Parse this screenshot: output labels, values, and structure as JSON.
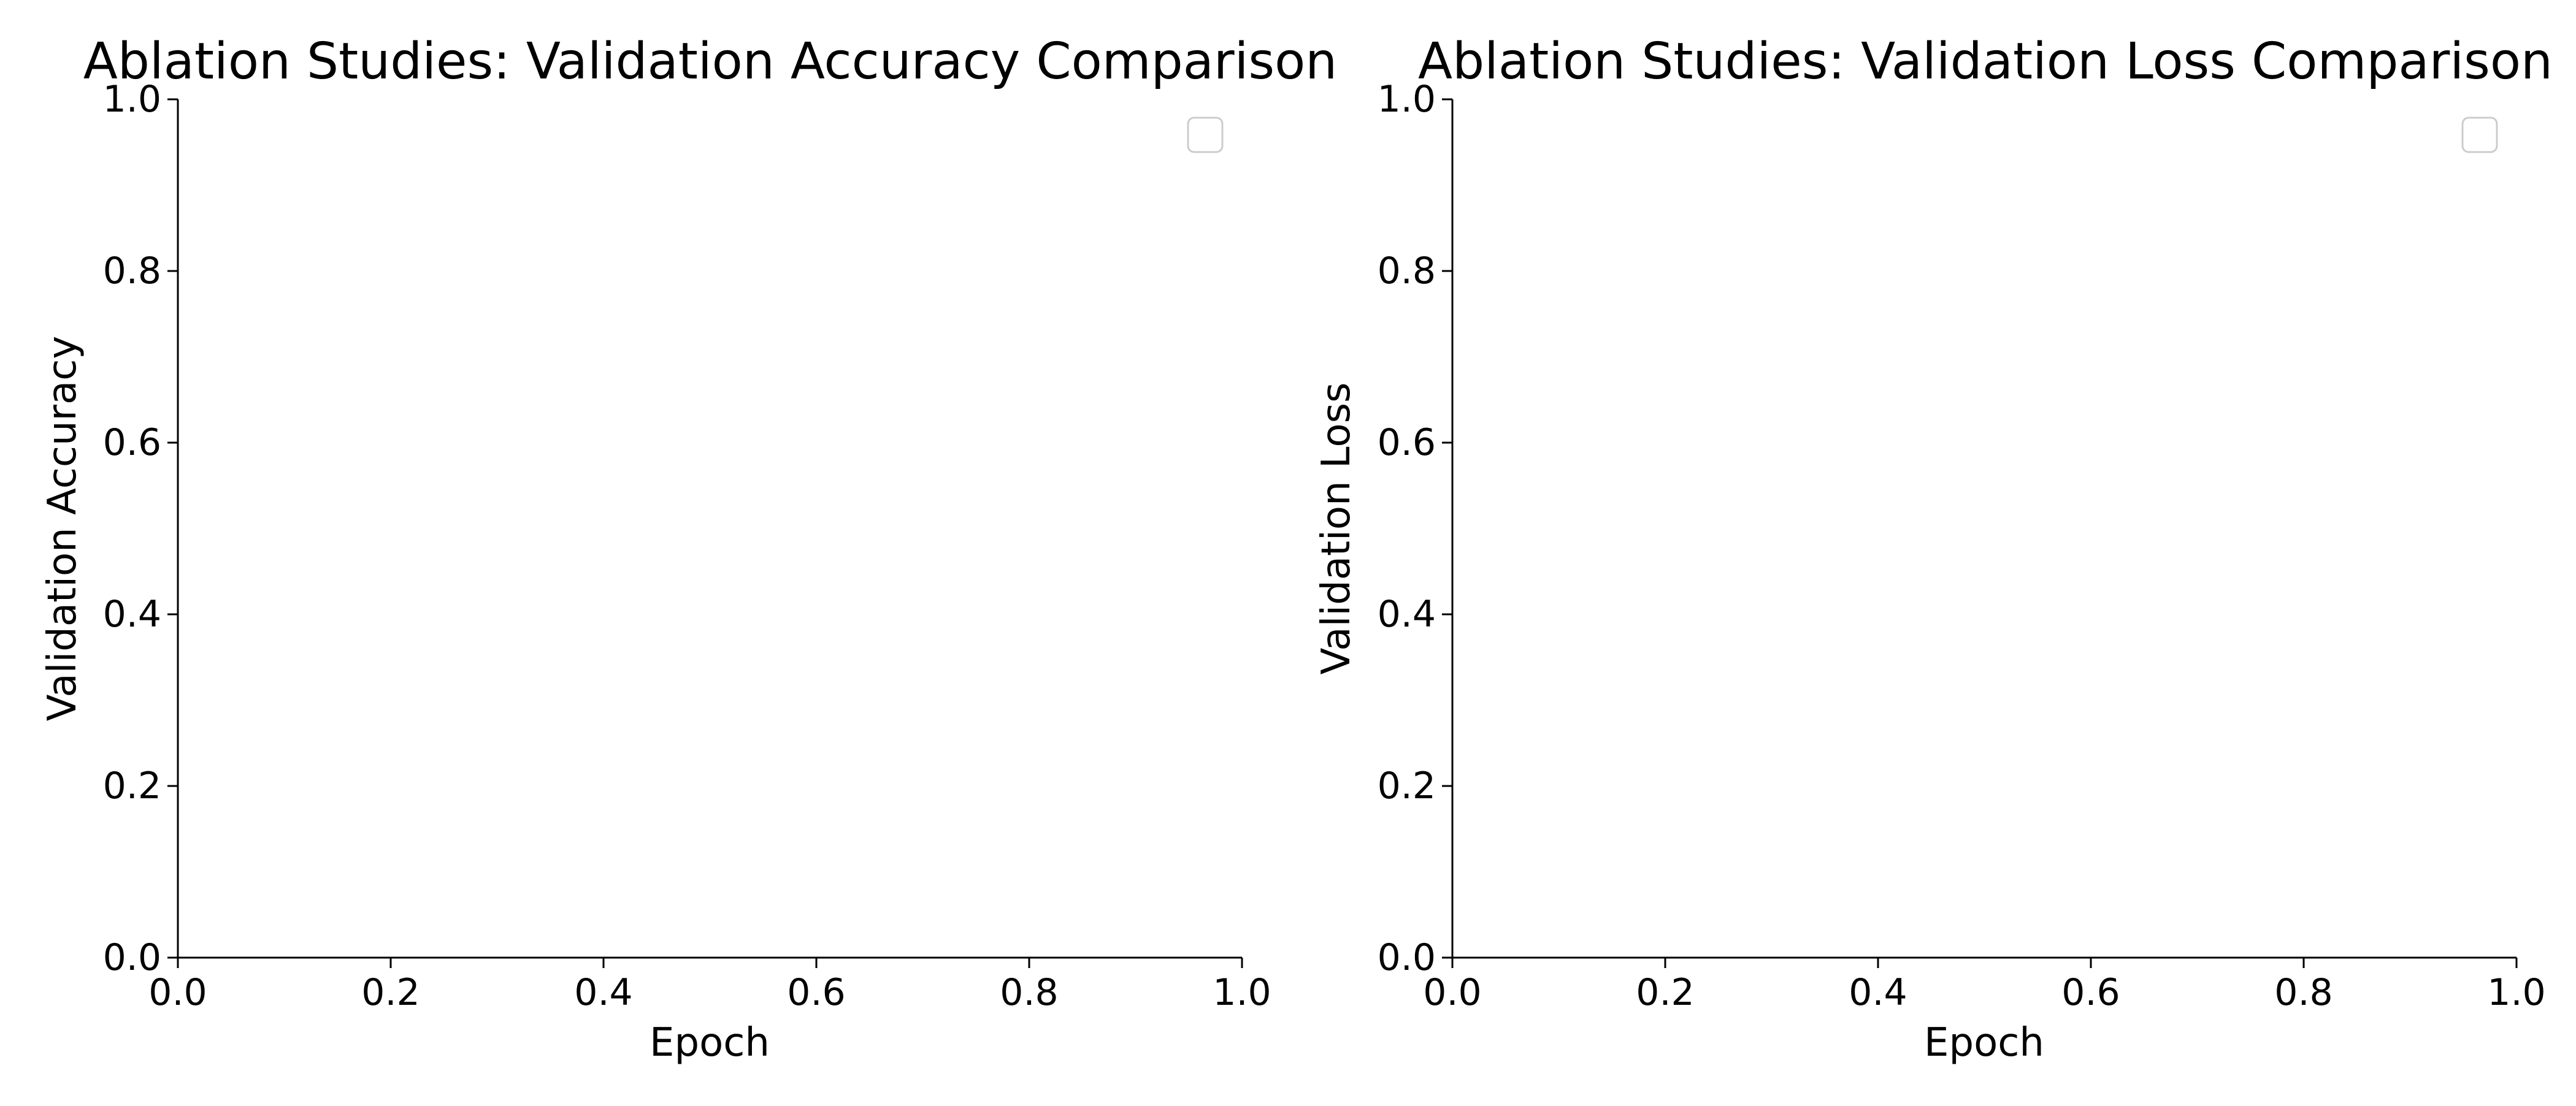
{
  "chart_data": [
    {
      "type": "line",
      "title": "Ablation Studies: Validation Accuracy Comparison",
      "xlabel": "Epoch",
      "ylabel": "Validation Accuracy",
      "xlim": [
        0.0,
        1.0
      ],
      "ylim": [
        0.0,
        1.0
      ],
      "xticks": [
        "0.0",
        "0.2",
        "0.4",
        "0.6",
        "0.8",
        "1.0"
      ],
      "yticks": [
        "0.0",
        "0.2",
        "0.4",
        "0.6",
        "0.8",
        "1.0"
      ],
      "series": [],
      "grid": false,
      "legend": "top-right",
      "spines": "left-bottom"
    },
    {
      "type": "line",
      "title": "Ablation Studies: Validation Loss Comparison",
      "xlabel": "Epoch",
      "ylabel": "Validation Loss",
      "xlim": [
        0.0,
        1.0
      ],
      "ylim": [
        0.0,
        1.0
      ],
      "xticks": [
        "0.0",
        "0.2",
        "0.4",
        "0.6",
        "0.8",
        "1.0"
      ],
      "yticks": [
        "0.0",
        "0.2",
        "0.4",
        "0.6",
        "0.8",
        "1.0"
      ],
      "series": [],
      "grid": false,
      "legend": "top-right",
      "spines": "left-bottom"
    }
  ]
}
